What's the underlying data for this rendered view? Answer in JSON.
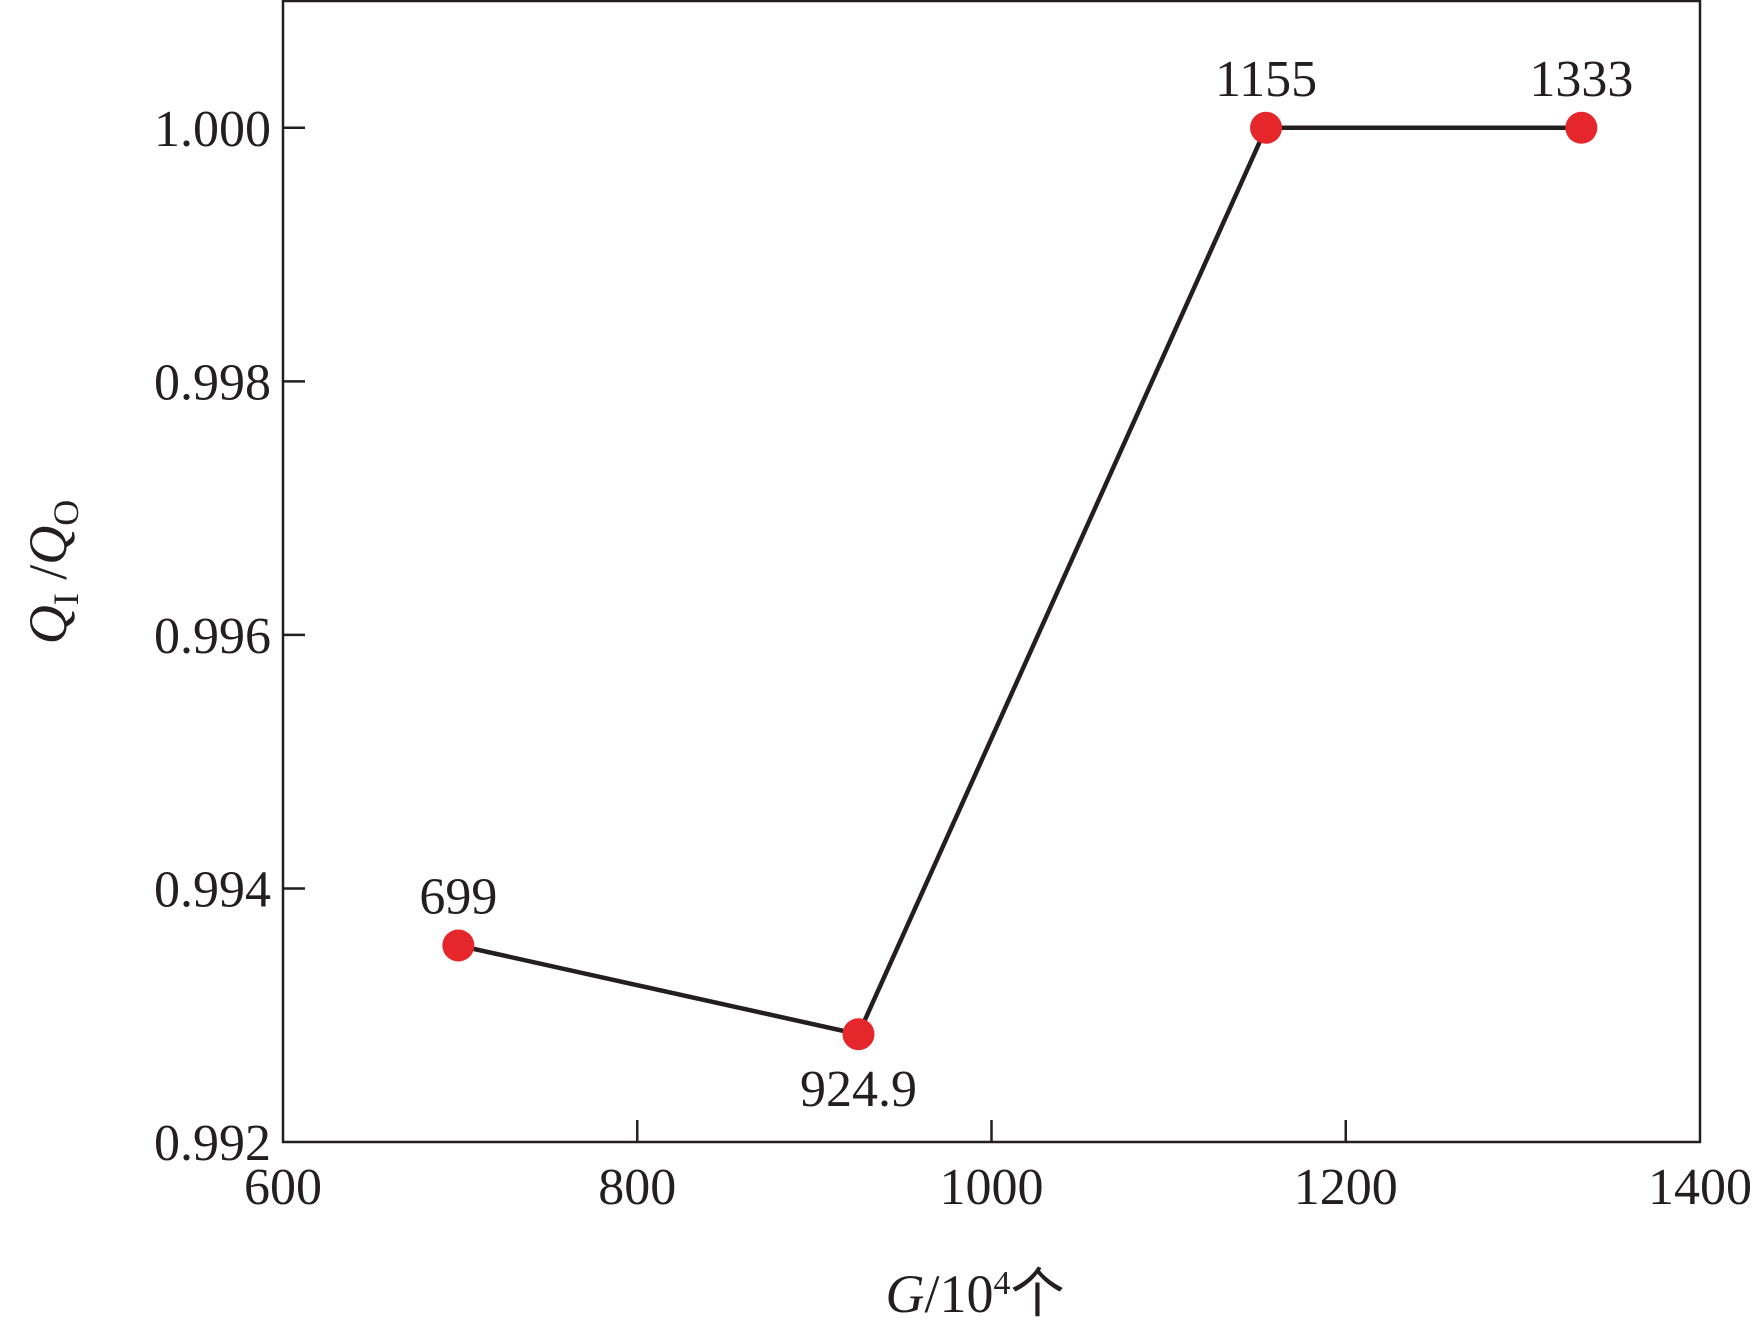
{
  "chart_data": {
    "type": "line",
    "title": "",
    "xlabel": {
      "var": "G",
      "sep": "/10",
      "exp": "4",
      "unit": "个"
    },
    "ylabel": {
      "num": "Q",
      "num_sub": "I",
      "sep": " /",
      "den": "Q",
      "den_sub": "O"
    },
    "xlim": [
      600,
      1400
    ],
    "ylim": [
      0.992,
      1.001
    ],
    "xticks": [
      600,
      800,
      1000,
      1200,
      1400
    ],
    "xtick_labels": [
      "600",
      "800",
      "1000",
      "1200",
      "1400"
    ],
    "yticks": [
      0.992,
      0.994,
      0.996,
      0.998,
      1.0
    ],
    "ytick_labels": [
      "0.992",
      "0.994",
      "0.996",
      "0.998",
      "1.000"
    ],
    "grid": false,
    "series": [
      {
        "color": "#e5262b",
        "line_color": "#231f20",
        "x": [
          699,
          924.9,
          1155,
          1333
        ],
        "y": [
          0.99355,
          0.99285,
          1.0,
          1.0
        ],
        "labels": [
          "699",
          "924.9",
          "1155",
          "1333"
        ],
        "label_positions": [
          "above",
          "below",
          "above",
          "above"
        ]
      }
    ]
  }
}
